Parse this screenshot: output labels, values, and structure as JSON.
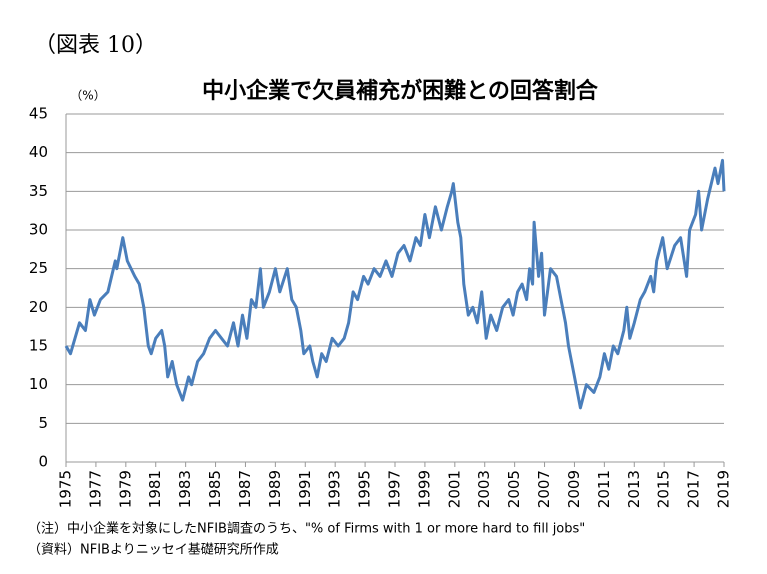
{
  "chart_data": {
    "type": "line",
    "label": "（図表 10）",
    "title": "中小企業で欠員補充が困難との回答割合",
    "y_label": "（%）",
    "notes": [
      "（注）中小企業を対象にしたNFIB調査のうち、\"% of Firms with 1 or more hard to fill jobs\"",
      "（資料）NFIBよりニッセイ基礎研究所作成"
    ],
    "color": "#4a7ebb",
    "grid": true,
    "xlim": [
      1975,
      2019
    ],
    "xticks": [
      1975,
      1977,
      1979,
      1981,
      1983,
      1985,
      1987,
      1989,
      1991,
      1993,
      1995,
      1997,
      1999,
      2001,
      2003,
      2005,
      2007,
      2009,
      2011,
      2013,
      2015,
      2017,
      2019
    ],
    "ylim": [
      0,
      45
    ],
    "yticks": [
      0,
      5,
      10,
      15,
      20,
      25,
      30,
      35,
      40,
      45
    ],
    "x": [
      1975.0,
      1975.3,
      1975.9,
      1976.3,
      1976.6,
      1976.9,
      1977.3,
      1977.8,
      1978.3,
      1978.4,
      1978.8,
      1979.1,
      1979.6,
      1979.9,
      1980.2,
      1980.5,
      1980.7,
      1981.0,
      1981.4,
      1981.6,
      1981.8,
      1982.1,
      1982.4,
      1982.8,
      1983.2,
      1983.4,
      1983.8,
      1984.2,
      1984.6,
      1985.0,
      1985.4,
      1985.8,
      1986.2,
      1986.5,
      1986.8,
      1987.1,
      1987.4,
      1987.7,
      1988.0,
      1988.2,
      1988.6,
      1989.0,
      1989.3,
      1989.8,
      1990.1,
      1990.4,
      1990.7,
      1990.9,
      1991.3,
      1991.5,
      1991.8,
      1992.1,
      1992.4,
      1992.8,
      1993.2,
      1993.6,
      1993.9,
      1994.2,
      1994.5,
      1994.9,
      1995.2,
      1995.6,
      1996.0,
      1996.4,
      1996.8,
      1997.2,
      1997.6,
      1998.0,
      1998.4,
      1998.7,
      1999.0,
      1999.3,
      1999.7,
      2000.1,
      2000.5,
      2000.8,
      2000.9,
      2001.2,
      2001.4,
      2001.6,
      2001.9,
      2002.2,
      2002.5,
      2002.8,
      2003.1,
      2003.4,
      2003.8,
      2004.2,
      2004.6,
      2004.9,
      2005.2,
      2005.5,
      2005.8,
      2006.0,
      2006.2,
      2006.3,
      2006.6,
      2006.8,
      2007.0,
      2007.4,
      2007.8,
      2008.1,
      2008.4,
      2008.6,
      2009.0,
      2009.4,
      2009.8,
      2010.3,
      2010.7,
      2011.0,
      2011.3,
      2011.6,
      2011.9,
      2012.3,
      2012.5,
      2012.7,
      2013.0,
      2013.4,
      2013.7,
      2014.1,
      2014.3,
      2014.5,
      2014.9,
      2015.2,
      2015.7,
      2016.1,
      2016.5,
      2016.7,
      2017.1,
      2017.3,
      2017.5,
      2017.9,
      2018.4,
      2018.6,
      2018.9,
      2019.0
    ],
    "values": [
      15,
      14,
      18,
      17,
      21,
      19,
      21,
      22,
      26,
      25,
      29,
      26,
      24,
      23,
      20,
      15,
      14,
      16,
      17,
      15,
      11,
      13,
      10,
      8,
      11,
      10,
      13,
      14,
      16,
      17,
      16,
      15,
      18,
      15,
      19,
      16,
      21,
      20,
      25,
      20,
      22,
      25,
      22,
      25,
      21,
      20,
      17,
      14,
      15,
      13,
      11,
      14,
      13,
      16,
      15,
      16,
      18,
      22,
      21,
      24,
      23,
      25,
      24,
      26,
      24,
      27,
      28,
      26,
      29,
      28,
      32,
      29,
      33,
      30,
      33,
      35,
      36,
      31,
      29,
      23,
      19,
      20,
      18,
      22,
      16,
      19,
      17,
      20,
      21,
      19,
      22,
      23,
      21,
      25,
      23,
      31,
      24,
      27,
      19,
      25,
      24,
      21,
      18,
      15,
      11,
      7,
      10,
      9,
      11,
      14,
      12,
      15,
      14,
      17,
      20,
      16,
      18,
      21,
      22,
      24,
      22,
      26,
      29,
      25,
      28,
      29,
      24,
      30,
      32,
      35,
      30,
      34,
      38,
      36,
      39,
      35
    ]
  }
}
